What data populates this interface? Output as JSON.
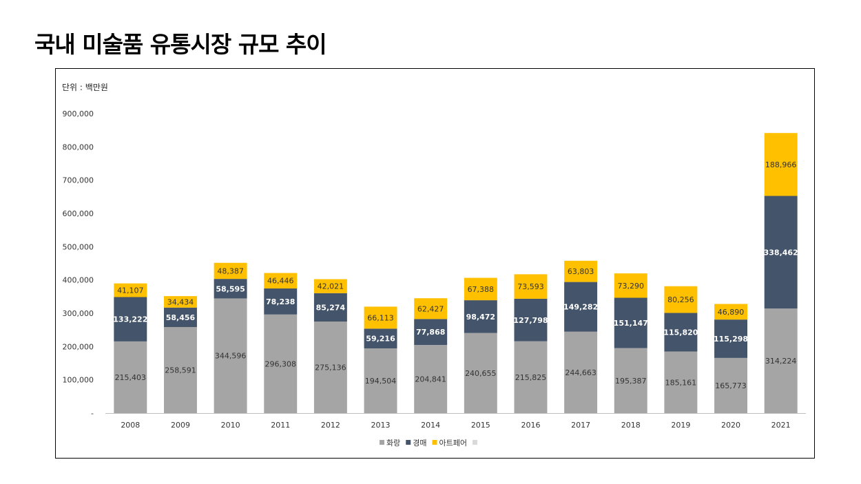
{
  "title": "국내 미술품 유통시장 규모 추이",
  "unit_label": "단위 : 백만원",
  "colors": {
    "gallery": "#a5a5a5",
    "auction": "#44546a",
    "artfair": "#ffc000",
    "empty": "#d9d9d9"
  },
  "chart_data": {
    "type": "bar",
    "stacked": true,
    "categories": [
      "2008",
      "2009",
      "2010",
      "2011",
      "2012",
      "2013",
      "2014",
      "2015",
      "2016",
      "2017",
      "2018",
      "2019",
      "2020",
      "2021"
    ],
    "series": [
      {
        "name": "화랑",
        "color": "#a5a5a5",
        "label_color": "#333333",
        "values": [
          215403,
          258591,
          344596,
          296308,
          275136,
          194504,
          204841,
          240655,
          215825,
          244663,
          195387,
          185161,
          165773,
          314224
        ]
      },
      {
        "name": "경매",
        "color": "#44546a",
        "label_color": "#ffffff",
        "values": [
          133222,
          58456,
          58595,
          78238,
          85274,
          59216,
          77868,
          98472,
          127798,
          149282,
          151147,
          115820,
          115298,
          338462
        ]
      },
      {
        "name": "아트페어",
        "color": "#ffc000",
        "label_color": "#333333",
        "values": [
          41107,
          34434,
          48387,
          46446,
          42021,
          66113,
          62427,
          67388,
          73593,
          63803,
          73290,
          80256,
          46890,
          188966
        ]
      }
    ],
    "legend_extra": [
      {
        "name": "",
        "color": "#d9d9d9"
      }
    ],
    "ylim": [
      0,
      900000
    ],
    "yticks": [
      0,
      100000,
      200000,
      300000,
      400000,
      500000,
      600000,
      700000,
      800000,
      900000
    ],
    "ytick_labels": [
      "-",
      "100,000",
      "200,000",
      "300,000",
      "400,000",
      "500,000",
      "600,000",
      "700,000",
      "800,000",
      "900,000"
    ],
    "grid": false,
    "legend_position": "bottom"
  }
}
